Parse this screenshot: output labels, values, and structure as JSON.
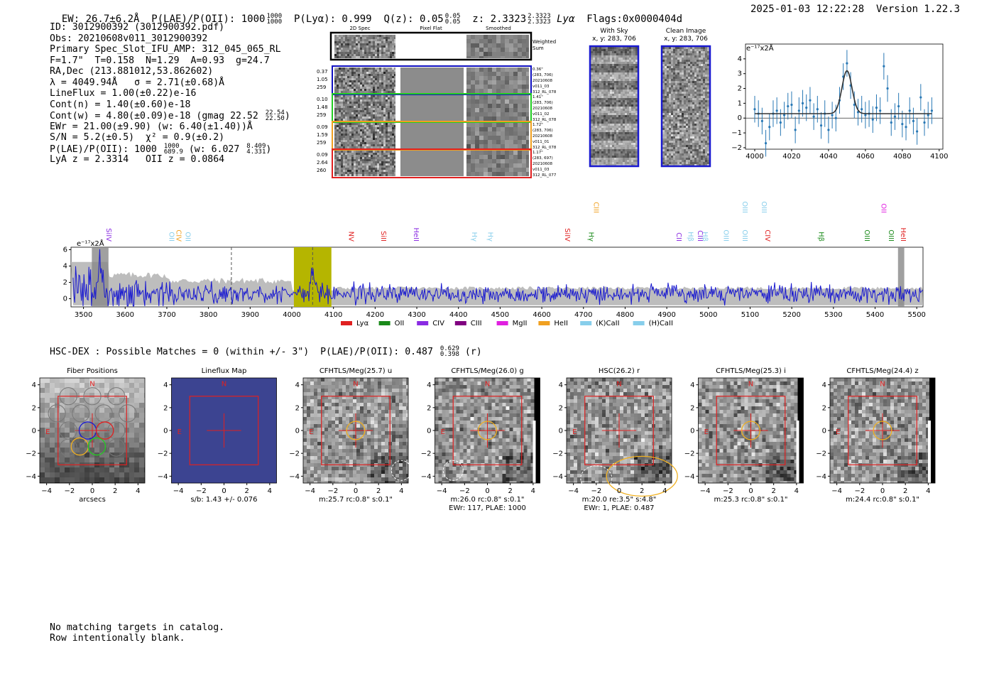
{
  "header": {
    "line_parts": [
      "EW: 26.7±6.2Å",
      "P(LAE)/P(OII): 1000",
      "1000",
      "1000",
      "P(Lyα): 0.999",
      "Q(z): 0.05",
      "0.05",
      "0.05",
      "z: 2.3323",
      "2.3323",
      "2.3323",
      "Lyα",
      "Flags:0x0000404d"
    ],
    "timestamp": "2025-01-03 12:22:28  Version 1.22.3"
  },
  "info": {
    "id": "ID: 3012900392 (3012900392.pdf)",
    "obs": "Obs: 20210608v011_3012900392",
    "primary": "Primary Spec_Slot_IFU_AMP: 312_045_065_RL",
    "fiber_params": "F=1.7\"  T=0.158  N=1.29  A=0.93  g=24.7",
    "radec": "RA,Dec (213.881012,53.862602)",
    "lambda": "λ = 4049.94Å   σ = 2.71(±0.68)Å",
    "lineflux": "LineFlux = 1.00(±0.22)e-16",
    "cont_n": "Cont(n) = 1.40(±0.60)e-18",
    "cont_w": "Cont(w) = 4.80(±0.09)e-18 (gmag 22.52",
    "cont_w_hi": "22.54",
    "cont_w_lo": "22.50",
    "ewr": "EWr = 21.00(±9.90) (w: 6.40(±1.40))Å",
    "sn": "S/N = 5.2(±0.5)  χ² = 0.9(±0.2)",
    "plae": "P(LAE)/P(OII): 1000",
    "plae_hi": "1000",
    "plae_lo": "689.9",
    "plae_w": "(w: 6.027",
    "plae_w_hi": "8.409",
    "plae_w_lo": "4.331",
    "lya_z": "LyA z = 2.3314   OII z = 0.0864"
  },
  "cutouts": {
    "col_labels": [
      "2D Spec",
      "Pixel Flat",
      "Smoothed"
    ],
    "weighted_sum": "Weighted Sum",
    "rows": [
      {
        "left": [
          "0.37",
          "1.05",
          "259"
        ],
        "right": [
          "0.36\"",
          "(283, 706)",
          "20210608",
          "v011_03",
          "312_RL_078"
        ],
        "color": "#1010c0"
      },
      {
        "left": [
          "0.10",
          "1.48",
          "259"
        ],
        "right": [
          "1.41\"",
          "(283, 706)",
          "20210608",
          "v011_02",
          "312_RL_078"
        ],
        "color": "#22cc22"
      },
      {
        "left": [
          "0.09",
          "1.59",
          "259"
        ],
        "right": [
          "1.72\"",
          "(283, 706)",
          "20210608",
          "v011_01",
          "312_RL_078"
        ],
        "color": "#f0a020"
      },
      {
        "left": [
          "0.09",
          "2.64",
          "260"
        ],
        "right": [
          "1.17\"",
          "(283, 697)",
          "20210608",
          "v011_03",
          "312_RL_077"
        ],
        "color": "#e02020"
      }
    ]
  },
  "sky_panels": [
    {
      "title": "With Sky",
      "coords": "x, y: 283, 706"
    },
    {
      "title": "Clean Image",
      "coords": "x, y: 283, 706"
    }
  ],
  "colors": {
    "spectrum": "#1a1ad0",
    "fit_points": "#2878b5",
    "fit_model": "#333333",
    "error_band": "#bdbdbd",
    "highlight": "#b5b500",
    "box_red": "#e02020",
    "fiber_blue": "#1a1ad0",
    "fiber_red": "#e02020",
    "fiber_orange": "#f0b020",
    "fiber_green": "#22cc22",
    "lineflux_bg": "#3c4491"
  },
  "chart_data": [
    {
      "type": "scatter",
      "name": "zoom-fit",
      "ylabel": "e⁻¹⁷x2Å",
      "xlim": [
        3995,
        4102
      ],
      "ylim": [
        -2.1,
        5
      ],
      "x_ticks": [
        4000,
        4020,
        4040,
        4060,
        4080,
        4100
      ],
      "y_ticks": [
        -2,
        -1,
        0,
        1,
        2,
        3,
        4
      ],
      "x": [
        4000,
        4002,
        4004,
        4006,
        4008,
        4010,
        4012,
        4014,
        4016,
        4018,
        4020,
        4022,
        4024,
        4026,
        4028,
        4030,
        4032,
        4034,
        4036,
        4038,
        4040,
        4042,
        4044,
        4046,
        4048,
        4050,
        4052,
        4054,
        4056,
        4058,
        4060,
        4062,
        4064,
        4066,
        4068,
        4070,
        4072,
        4074,
        4076,
        4078,
        4080,
        4082,
        4084,
        4086,
        4088,
        4090,
        4092,
        4094,
        4096
      ],
      "y": [
        0.6,
        0.3,
        -0.2,
        -1.7,
        -0.6,
        0.3,
        0.5,
        -0.3,
        0.2,
        0.8,
        0.9,
        -0.8,
        0.5,
        1.0,
        0.7,
        1.2,
        0.1,
        0.6,
        -0.5,
        0.3,
        -0.8,
        0.2,
        0.0,
        1.2,
        2.8,
        3.7,
        2.2,
        0.9,
        0.4,
        0.6,
        0.2,
        0.3,
        -0.1,
        0.7,
        0.5,
        3.5,
        2.0,
        -0.3,
        0.1,
        0.8,
        -0.4,
        -0.6,
        0.5,
        -0.2,
        -0.9,
        1.4,
        -0.3,
        0.2,
        0.5
      ],
      "err": 0.9,
      "model": {
        "continuum": 0.3,
        "center": 4050,
        "amplitude": 2.9,
        "sigma": 2.7
      }
    },
    {
      "type": "line",
      "name": "full-spectrum",
      "ylabel": "e⁻¹⁷x2Å",
      "xlim": [
        3470,
        5515
      ],
      "ylim": [
        -1,
        6.3
      ],
      "x_ticks": [
        3500,
        3600,
        3700,
        3800,
        3900,
        4000,
        4100,
        4200,
        4300,
        4400,
        4500,
        4600,
        4700,
        4800,
        4900,
        5000,
        5100,
        5200,
        5300,
        5400,
        5500
      ],
      "y_ticks": [
        0,
        2,
        4,
        6
      ],
      "highlight_range": [
        4005,
        4095
      ],
      "masked_ranges": [
        [
          3520,
          3560
        ],
        [
          5455,
          5470
        ]
      ],
      "marker_lines": [
        3855,
        4050
      ],
      "line_labels": [
        {
          "x": 3555,
          "label": "SiIV",
          "color": "#8a2be2",
          "row": 0
        },
        {
          "x": 3706,
          "label": "OII",
          "color": "#87ceeb",
          "row": 0
        },
        {
          "x": 3723,
          "label": "CIV",
          "color": "#f0a020",
          "row": 0
        },
        {
          "x": 3745,
          "label": "OII",
          "color": "#87ceeb",
          "row": 0
        },
        {
          "x": 4137,
          "label": "NV",
          "color": "#e02020",
          "row": 0
        },
        {
          "x": 4215,
          "label": "SiII",
          "color": "#e02020",
          "row": 0
        },
        {
          "x": 4293,
          "label": "HeII",
          "color": "#8a2be2",
          "row": 0
        },
        {
          "x": 4433,
          "label": "Hγ",
          "color": "#87ceeb",
          "row": 0
        },
        {
          "x": 4471,
          "label": "Hγ",
          "color": "#87ceeb",
          "row": 0
        },
        {
          "x": 4656,
          "label": "SiIV",
          "color": "#e02020",
          "row": 0
        },
        {
          "x": 4713,
          "label": "Hγ",
          "color": "#1a8a1a",
          "row": 0
        },
        {
          "x": 4725,
          "label": "CIII",
          "color": "#f0a020",
          "row": 1
        },
        {
          "x": 4924,
          "label": "CII",
          "color": "#8a2be2",
          "row": 0
        },
        {
          "x": 4952,
          "label": "Hβ",
          "color": "#87ceeb",
          "row": 0
        },
        {
          "x": 4975,
          "label": "CIII",
          "color": "#8a2be2",
          "row": 0
        },
        {
          "x": 4987,
          "label": "Hβ",
          "color": "#87ceeb",
          "row": 0
        },
        {
          "x": 5037,
          "label": "OIII",
          "color": "#87ceeb",
          "row": 0
        },
        {
          "x": 5082,
          "label": "OIII",
          "color": "#87ceeb",
          "row": 0
        },
        {
          "x": 5082,
          "label": "OIII",
          "color": "#87ceeb",
          "row": 1
        },
        {
          "x": 5128,
          "label": "OIII",
          "color": "#87ceeb",
          "row": 1
        },
        {
          "x": 5137,
          "label": "CIV",
          "color": "#e02020",
          "row": 0
        },
        {
          "x": 5265,
          "label": "Hβ",
          "color": "#1a8a1a",
          "row": 0
        },
        {
          "x": 5375,
          "label": "OIII",
          "color": "#1a8a1a",
          "row": 0
        },
        {
          "x": 5415,
          "label": "OII",
          "color": "#e020e0",
          "row": 1
        },
        {
          "x": 5433,
          "label": "OIII",
          "color": "#1a8a1a",
          "row": 0
        },
        {
          "x": 5462,
          "label": "HeII",
          "color": "#e02020",
          "row": 0
        }
      ],
      "legend": [
        {
          "label": "Lyα",
          "color": "#e02020"
        },
        {
          "label": "OII",
          "color": "#1a8a1a"
        },
        {
          "label": "CIV",
          "color": "#8a2be2"
        },
        {
          "label": "CIII",
          "color": "#800080"
        },
        {
          "label": "MgII",
          "color": "#e020e0"
        },
        {
          "label": "HeII",
          "color": "#f0a020"
        },
        {
          "label": "(K)CaII",
          "color": "#87ceeb"
        },
        {
          "label": "(H)CaII",
          "color": "#87ceeb"
        }
      ]
    }
  ],
  "hsc": {
    "line": "HSC-DEX : Possible Matches = 0 (within +/- 3\")  P(LAE)/P(OII): 0.487",
    "hi": "0.629",
    "lo": "0.398",
    "band": "(r)"
  },
  "imaging_panels": [
    {
      "title": "Fiber Positions",
      "xlabel": "arcsecs",
      "caption2": "",
      "type": "fibers"
    },
    {
      "title": "Lineflux Map",
      "xlabel": "s/b: 1.43 +/- 0.076",
      "caption2": "",
      "type": "lineflux"
    },
    {
      "title": "CFHTLS/Meg(25.7) u",
      "xlabel": "m:25.7 rc:0.8\"  s:0.1\"",
      "caption2": "",
      "type": "image"
    },
    {
      "title": "CFHTLS/Meg(26.0) g",
      "xlabel": "m:26.0 rc:0.8\"  s:0.1\"",
      "caption2": "EWr: 117, PLAE: 1000",
      "type": "image"
    },
    {
      "title": "HSC(26.2) r",
      "xlabel": "m:20.0  re:3.5\"  s:4.8\"",
      "caption2": "EWr: 1, PLAE: 0.487",
      "type": "image"
    },
    {
      "title": "CFHTLS/Meg(25.3) i",
      "xlabel": "m:25.3 rc:0.8\"  s:0.1\"",
      "caption2": "",
      "type": "image"
    },
    {
      "title": "CFHTLS/Meg(24.4) z",
      "xlabel": "m:24.4 rc:0.8\"  s:0.1\"",
      "caption2": "",
      "type": "image"
    }
  ],
  "imaging_axis": {
    "ticks": [
      -4,
      -2,
      0,
      2,
      4
    ],
    "north": "N",
    "east": "E"
  },
  "footer": {
    "line1": "No matching targets in catalog.",
    "line2": "Row intentionally blank."
  }
}
